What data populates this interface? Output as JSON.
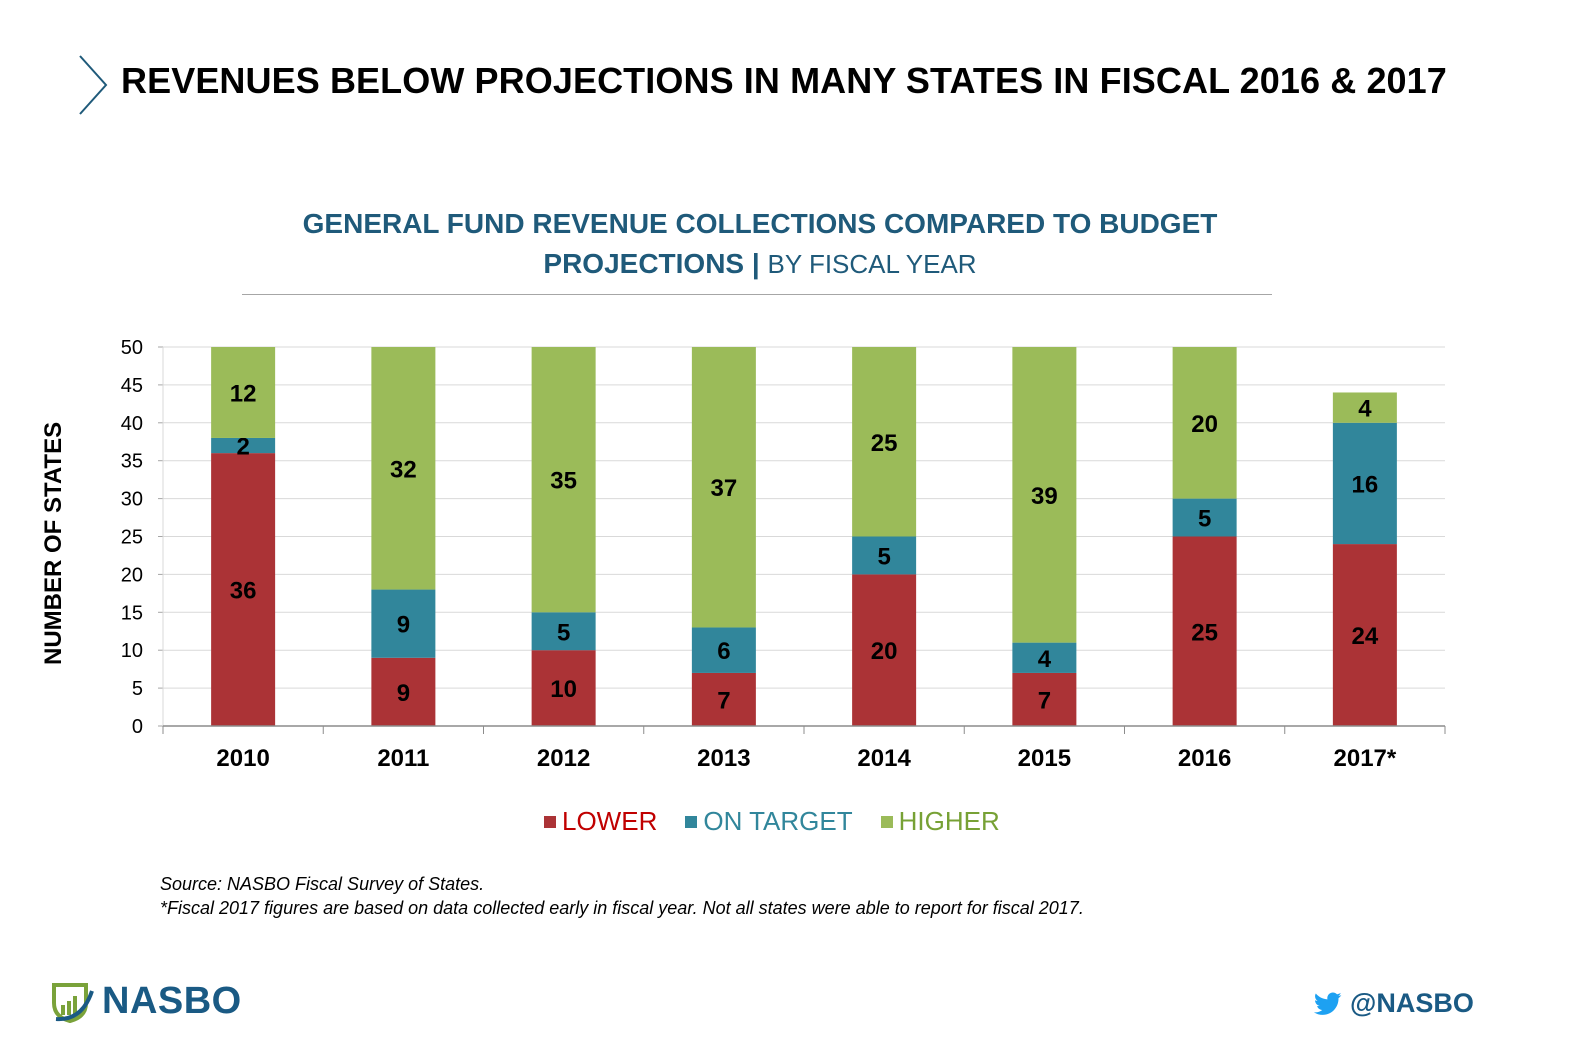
{
  "header": {
    "title": "REVENUES BELOW PROJECTIONS IN MANY STATES IN FISCAL 2016 & 2017",
    "chevron_icon": "chevron-right-icon"
  },
  "chart_title": {
    "line1": "GENERAL FUND REVENUE COLLECTIONS COMPARED TO BUDGET",
    "line2_bold": "PROJECTIONS",
    "separator": "|",
    "line2_sub": "BY FISCAL YEAR"
  },
  "colors": {
    "lower": "#ab3336",
    "on_target": "#31869b",
    "higher": "#9bbb59",
    "title_blue": "#1f5a7a",
    "brand_blue": "#1a5a84",
    "twitter_blue": "#1da1f2",
    "legend_lower_text": "#c00000",
    "legend_on_target_text": "#31869b",
    "legend_higher_text": "#77a135"
  },
  "chart_data": {
    "type": "bar",
    "stacked": true,
    "title": "GENERAL FUND REVENUE COLLECTIONS COMPARED TO BUDGET PROJECTIONS | BY FISCAL YEAR",
    "xlabel": "",
    "ylabel": "NUMBER OF STATES",
    "ylim": [
      0,
      50
    ],
    "yticks": [
      0,
      5,
      10,
      15,
      20,
      25,
      30,
      35,
      40,
      45,
      50
    ],
    "grid": true,
    "legend_position": "bottom",
    "categories": [
      "2010",
      "2011",
      "2012",
      "2013",
      "2014",
      "2015",
      "2016",
      "2017*"
    ],
    "series": [
      {
        "name": "LOWER",
        "key": "lower",
        "values": [
          36,
          9,
          10,
          7,
          20,
          7,
          25,
          24
        ]
      },
      {
        "name": "ON TARGET",
        "key": "on_target",
        "values": [
          2,
          9,
          5,
          6,
          5,
          4,
          5,
          16
        ]
      },
      {
        "name": "HIGHER",
        "key": "higher",
        "values": [
          12,
          32,
          35,
          37,
          25,
          39,
          20,
          4
        ]
      }
    ]
  },
  "footnotes": {
    "source": "Source: NASBO Fiscal Survey of States.",
    "note": "*Fiscal 2017 figures are based on data collected early in fiscal year. Not all states were able to report for fiscal 2017."
  },
  "footer": {
    "logo_text": "NASBO",
    "twitter_handle": "@NASBO"
  }
}
